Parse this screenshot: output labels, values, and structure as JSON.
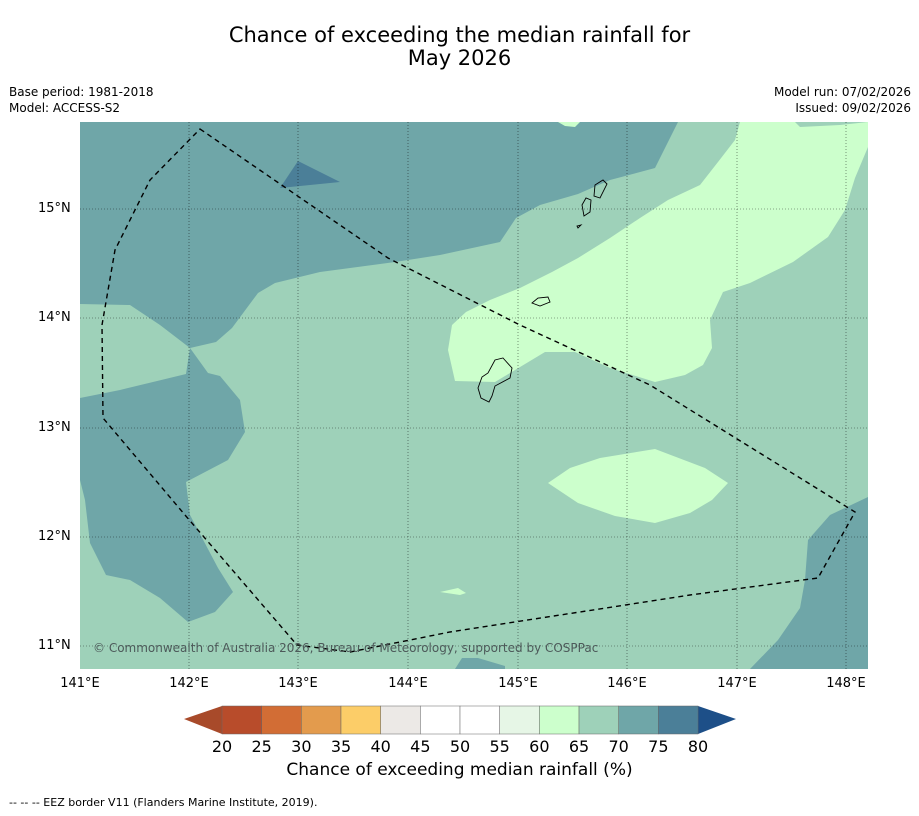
{
  "title": {
    "line1": "Chance of exceeding the median rainfall for",
    "line2": "May 2026"
  },
  "meta": {
    "base_period": "Base period: 1981-2018",
    "model": "Model: ACCESS-S2",
    "model_run": "Model run: 07/02/2026",
    "issued": "Issued: 09/02/2026"
  },
  "map": {
    "lat_labels": [
      "15°N",
      "14°N",
      "13°N",
      "12°N",
      "11°N"
    ],
    "lon_labels": [
      "141°E",
      "142°E",
      "143°E",
      "144°E",
      "145°E",
      "146°E",
      "147°E",
      "148°E"
    ],
    "copyright": "© Commonwealth of Australia 2026, Bureau of Meteorology, supported by COSPPac"
  },
  "colorbar": {
    "ticks": [
      "20",
      "25",
      "30",
      "35",
      "40",
      "45",
      "50",
      "55",
      "60",
      "65",
      "70",
      "75",
      "80"
    ],
    "colors": [
      "#a84a2a",
      "#b84c2b",
      "#d26d35",
      "#e39b4d",
      "#fccd68",
      "#ece9e6",
      "#ffffff",
      "#ffffff",
      "#e6f6e6",
      "#ccffcc",
      "#9ed1b9",
      "#6fa6a8",
      "#4b7f98",
      "#1d4f88"
    ],
    "title": "Chance of exceeding median rainfall (%)"
  },
  "footnote": "--  --  -- EEZ border V11 (Flanders Marine Institute, 2019)."
}
